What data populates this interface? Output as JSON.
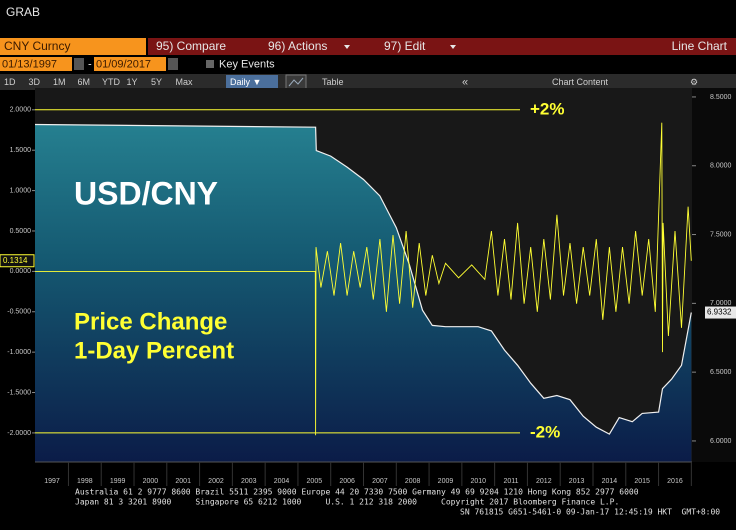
{
  "header": {
    "title": "GRAB"
  },
  "command_bar": {
    "security": "CNY Curncy",
    "menus": [
      "95) Compare",
      "96) Actions",
      "97) Edit"
    ],
    "view": "Line Chart"
  },
  "date_range": {
    "start": "01/13/1997",
    "end": "01/09/2017",
    "key_events": "Key Events"
  },
  "toolbar": {
    "periods": [
      "1D",
      "3D",
      "1M",
      "6M",
      "YTD",
      "1Y",
      "5Y",
      "Max"
    ],
    "frequency": "Daily ▼",
    "table": "Table",
    "chart_content": "Chart Content"
  },
  "footer": [
    "Australia 61 2 9777 8600 Brazil 5511 2395 9000 Europe 44 20 7330 7500 Germany 49 69 9204 1210 Hong Kong 852 2977 6000",
    "Japan 81 3 3201 8900     Singapore 65 6212 1000     U.S. 1 212 318 2000     Copyright 2017 Bloomberg Finance L.P.",
    "SN 761815 G651-5461-0 09-Jan-17 12:45:19 HKT  GMT+8:00"
  ],
  "chart_data": {
    "type": "line",
    "labels": [
      "Price Change",
      "1-Day Percent"
    ],
    "xlim": [
      1996.48,
      2016.52
    ],
    "xticks": [
      1997,
      1998,
      1999,
      2000,
      2001,
      2002,
      2003,
      2004,
      2005,
      2006,
      2007,
      2008,
      2009,
      2010,
      2011,
      2012,
      2013,
      2014,
      2015,
      2016
    ],
    "ylim": [
      -2.36,
      2.27
    ],
    "yticks": [
      {
        "value": 2,
        "label": "2.0000"
      },
      {
        "value": 1.5,
        "label": "1.5000"
      },
      {
        "value": 1,
        "label": "1.0000"
      },
      {
        "value": 0.5,
        "label": "0.5000"
      },
      {
        "value": 0,
        "label": "0.0000"
      },
      {
        "value": -0.5,
        "label": "-0.5000"
      },
      {
        "value": -1,
        "label": "-1.0000"
      },
      {
        "value": -1.5,
        "label": "-1.5000"
      },
      {
        "value": -2,
        "label": "-2.0000"
      }
    ],
    "y2lim": [
      5.847,
      8.565
    ],
    "y2ticks": [
      {
        "value": 8.5,
        "label": "8.5000"
      },
      {
        "value": 8,
        "label": "8.0000"
      },
      {
        "value": 7.5,
        "label": "7.5000"
      },
      {
        "value": 7,
        "label": "7.0000"
      },
      {
        "value": 6.5,
        "label": "6.5000"
      },
      {
        "value": 6,
        "label": "6.0000"
      }
    ],
    "reference_lines": [
      {
        "label": "+2%",
        "value": 2
      },
      {
        "label": "-2%",
        "value": -2
      }
    ],
    "series": [
      {
        "name": "USD/CNY",
        "color": "#f0f0f0",
        "axis": "y2",
        "x": [
          1996.48,
          2005.04,
          2005.06,
          2005.5,
          2006.0,
          2006.5,
          2007.0,
          2007.5,
          2007.9,
          2008.3,
          2008.6,
          2009.0,
          2010.0,
          2010.4,
          2010.8,
          2011.2,
          2011.6,
          2012.0,
          2012.4,
          2012.8,
          2013.2,
          2013.6,
          2014.0,
          2014.3,
          2014.7,
          2015.0,
          2015.5,
          2015.62,
          2015.9,
          2016.2,
          2016.5
        ],
        "values": [
          8.3,
          8.28,
          8.11,
          8.07,
          7.99,
          7.9,
          7.78,
          7.55,
          7.28,
          6.95,
          6.84,
          6.83,
          6.83,
          6.8,
          6.66,
          6.55,
          6.42,
          6.31,
          6.33,
          6.3,
          6.18,
          6.1,
          6.05,
          6.17,
          6.14,
          6.2,
          6.21,
          6.38,
          6.45,
          6.55,
          6.9332
        ]
      },
      {
        "color": "#ffff33",
        "x": [
          1996.48,
          2005.03,
          2005.04,
          2005.05,
          2005.2,
          2005.4,
          2005.6,
          2005.8,
          2006.0,
          2006.2,
          2006.4,
          2006.6,
          2006.8,
          2007.0,
          2007.2,
          2007.4,
          2007.6,
          2007.8,
          2008.0,
          2008.2,
          2008.4,
          2008.6,
          2008.8,
          2009.0,
          2009.4,
          2009.8,
          2010.2,
          2010.4,
          2010.6,
          2010.8,
          2011.0,
          2011.2,
          2011.4,
          2011.6,
          2011.8,
          2012.0,
          2012.2,
          2012.4,
          2012.6,
          2012.8,
          2013.0,
          2013.2,
          2013.4,
          2013.6,
          2013.8,
          2014.0,
          2014.2,
          2014.4,
          2014.6,
          2014.8,
          2015.0,
          2015.2,
          2015.4,
          2015.6,
          2015.62,
          2015.64,
          2015.8,
          2016.0,
          2016.2,
          2016.4,
          2016.5
        ],
        "values": [
          0,
          0,
          -2.03,
          0.3,
          -0.2,
          0.25,
          -0.3,
          0.35,
          -0.3,
          0.25,
          -0.2,
          0.3,
          -0.35,
          0.4,
          -0.5,
          0.45,
          -0.4,
          0.5,
          -0.45,
          0.35,
          -0.3,
          0.2,
          -0.15,
          0.1,
          -0.08,
          0.08,
          -0.1,
          0.5,
          -0.3,
          0.4,
          -0.35,
          0.6,
          -0.4,
          0.3,
          -0.5,
          0.4,
          -0.35,
          0.7,
          -0.3,
          0.35,
          -0.4,
          0.3,
          -0.3,
          0.4,
          -0.6,
          0.3,
          -0.5,
          0.3,
          -0.4,
          0.5,
          -0.3,
          0.4,
          -0.5,
          1.84,
          -1.0,
          0.6,
          -0.8,
          0.5,
          -0.7,
          0.8,
          0.1314
        ]
      }
    ]
  }
}
